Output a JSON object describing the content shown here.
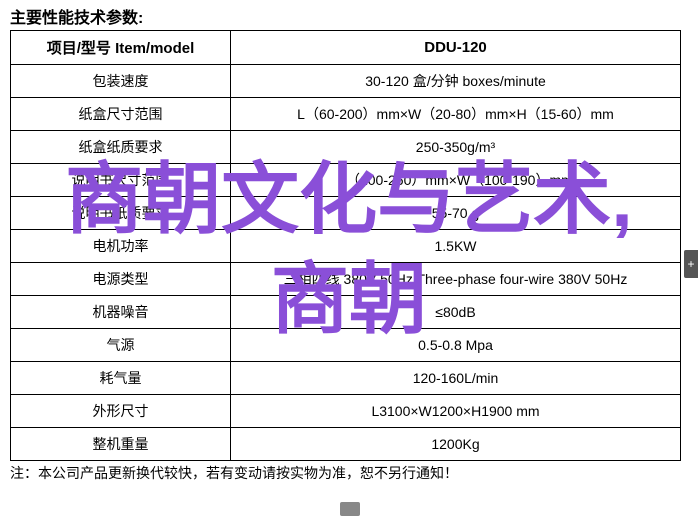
{
  "title": "主要性能技术参数:",
  "table": {
    "header_left": "项目/型号 Item/model",
    "header_right": "DDU-120",
    "rows": [
      {
        "label": "包装速度",
        "value": "30-120 盒/分钟 boxes/minute"
      },
      {
        "label": "纸盒尺寸范围",
        "value": "L（60-200）mm×W（20-80）mm×H（15-60）mm"
      },
      {
        "label": "纸盒纸质要求",
        "value": "250-350g/m³"
      },
      {
        "label": "说明书尺寸范围",
        "value": "L（100-260）mm×W（100-190）mm"
      },
      {
        "label": "说明书纸质要求",
        "value": "55-70 g"
      },
      {
        "label": "电机功率",
        "value": "1.5KW"
      },
      {
        "label": "电源类型",
        "value": "三相四线 380V 50Hz Three-phase four-wire 380V 50Hz"
      },
      {
        "label": "机器噪音",
        "value": "≤80dB"
      },
      {
        "label": "气源",
        "value": "0.5-0.8 Mpa"
      },
      {
        "label": "耗气量",
        "value": "120-160L/min"
      },
      {
        "label": "外形尺寸",
        "value": "L3100×W1200×H1900 mm"
      },
      {
        "label": "整机重量",
        "value": "1200Kg"
      }
    ]
  },
  "footnote": "注：本公司产品更新换代较快，若有变动请按实物为准，恕不另行通知！",
  "overlay": {
    "line1": "商朝文化与艺术,",
    "line2": "商朝",
    "color": "#8a4fd8"
  },
  "nav_icon": "+"
}
